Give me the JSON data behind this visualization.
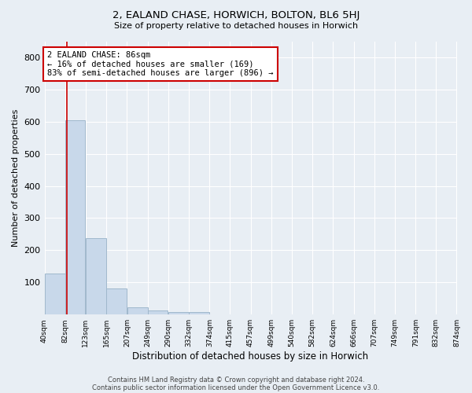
{
  "title": "2, EALAND CHASE, HORWICH, BOLTON, BL6 5HJ",
  "subtitle": "Size of property relative to detached houses in Horwich",
  "xlabel": "Distribution of detached houses by size in Horwich",
  "ylabel": "Number of detached properties",
  "bar_color": "#c8d8ea",
  "bar_edge_color": "#a0b8cc",
  "background_color": "#e8eef4",
  "plot_bg_color": "#e8eef4",
  "grid_color": "#ffffff",
  "property_line_color": "#cc0000",
  "property_size": 86,
  "annotation_text": "2 EALAND CHASE: 86sqm\n← 16% of detached houses are smaller (169)\n83% of semi-detached houses are larger (896) →",
  "footer_line1": "Contains HM Land Registry data © Crown copyright and database right 2024.",
  "footer_line2": "Contains public sector information licensed under the Open Government Licence v3.0.",
  "bin_edges": [
    40,
    82,
    123,
    165,
    207,
    249,
    290,
    332,
    374,
    415,
    457,
    499,
    540,
    582,
    624,
    666,
    707,
    749,
    791,
    832,
    874
  ],
  "bin_labels": [
    "40sqm",
    "82sqm",
    "123sqm",
    "165sqm",
    "207sqm",
    "249sqm",
    "290sqm",
    "332sqm",
    "374sqm",
    "415sqm",
    "457sqm",
    "499sqm",
    "540sqm",
    "582sqm",
    "624sqm",
    "666sqm",
    "707sqm",
    "749sqm",
    "791sqm",
    "832sqm",
    "874sqm"
  ],
  "bar_heights": [
    128,
    605,
    238,
    80,
    22,
    13,
    9,
    9,
    0,
    0,
    0,
    0,
    0,
    0,
    0,
    0,
    0,
    0,
    0,
    0
  ],
  "ylim": [
    0,
    850
  ],
  "yticks": [
    100,
    200,
    300,
    400,
    500,
    600,
    700,
    800
  ]
}
